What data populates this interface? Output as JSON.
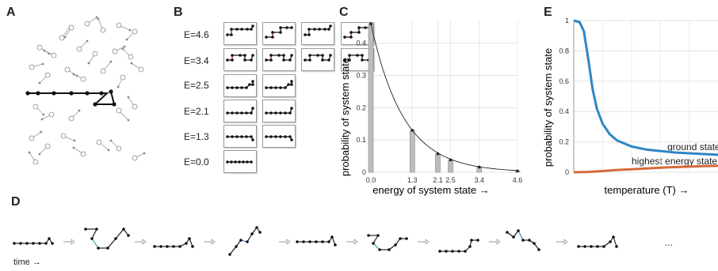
{
  "panels": {
    "a": {
      "letter": "A"
    },
    "b": {
      "letter": "B",
      "energy_labels": [
        "E=4.6",
        "E=3.4",
        "E=2.5",
        "E=2.1",
        "E=1.3",
        "E=0.0"
      ]
    },
    "c": {
      "letter": "C"
    },
    "d": {
      "letter": "D",
      "time_label": "time →",
      "ellipsis": "..."
    },
    "e": {
      "letter": "E"
    }
  },
  "chart_data": [
    {
      "type": "bar",
      "panel": "C",
      "xlabel": "energy of system state →",
      "ylabel": "probability of system state",
      "categories": [
        "0.0",
        "1.3",
        "2.1",
        "2.5",
        "3.4",
        "4.6"
      ],
      "x": [
        0.0,
        1.3,
        2.1,
        2.5,
        3.4,
        4.6
      ],
      "values": [
        0.46,
        0.13,
        0.057,
        0.038,
        0.016,
        0.004
      ],
      "xlim": [
        0,
        4.6
      ],
      "ylim": [
        0,
        0.47
      ],
      "yticks": [
        "0",
        "0.1",
        "0.2",
        "0.3",
        "0.4"
      ],
      "curve": "exponential fit through bar tops",
      "grid": true
    },
    {
      "type": "line",
      "panel": "E",
      "xlabel": "temperature (T) →",
      "ylabel": "probability of system state",
      "ylim": [
        0,
        1
      ],
      "yticks": [
        "0",
        "0.2",
        "0.4",
        "0.6",
        "0.8",
        "1"
      ],
      "series": [
        {
          "name": "ground state",
          "color": "#2d86c6",
          "x": [
            0,
            0.04,
            0.07,
            0.1,
            0.13,
            0.16,
            0.2,
            0.25,
            0.3,
            0.4,
            0.5,
            0.6,
            0.7,
            0.8,
            0.9,
            1.0
          ],
          "values": [
            1.0,
            0.99,
            0.93,
            0.75,
            0.55,
            0.42,
            0.32,
            0.25,
            0.21,
            0.17,
            0.15,
            0.14,
            0.13,
            0.125,
            0.12,
            0.115
          ]
        },
        {
          "name": "highest energy state",
          "color": "#d46a3a",
          "x": [
            0,
            0.1,
            0.2,
            0.3,
            0.4,
            0.5,
            0.6,
            0.7,
            0.8,
            0.9,
            1.0
          ],
          "values": [
            0.0,
            0.002,
            0.008,
            0.015,
            0.02,
            0.025,
            0.03,
            0.034,
            0.037,
            0.04,
            0.042
          ]
        }
      ],
      "grid": true
    }
  ]
}
